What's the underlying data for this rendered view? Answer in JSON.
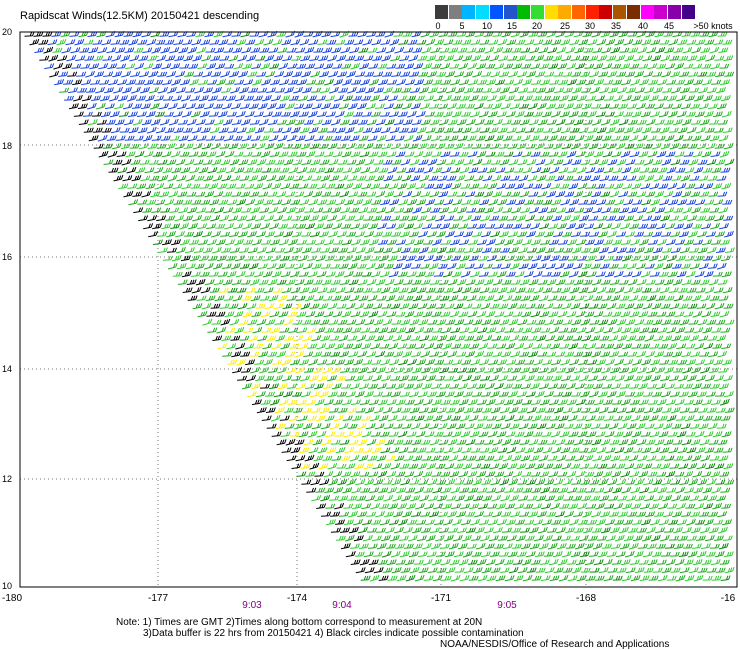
{
  "title": "Rapidscat Winds(12.5KM) 20150421 descending",
  "colorbar": {
    "colors": [
      "#3c3c3c",
      "#7f7f7f",
      "#00b4ff",
      "#00ddff",
      "#0055ff",
      "#2255cc",
      "#00bb00",
      "#33dd33",
      "#ffdd00",
      "#ffaa00",
      "#ff6600",
      "#ff2200",
      "#cc0000",
      "#aa5500",
      "#7a2e00",
      "#ff00ff",
      "#cc00cc",
      "#8800aa",
      "#440088"
    ],
    "labels": [
      "0",
      "5",
      "10",
      "15",
      "20",
      "25",
      "30",
      "35",
      "40",
      "45",
      ">50 knots"
    ]
  },
  "map": {
    "y_ticks": [
      "20",
      "18",
      "16",
      "14",
      "12",
      "10"
    ],
    "x_ticks": [
      "-180",
      "-177",
      "-174",
      "-171",
      "-168",
      "-16"
    ],
    "time_ticks": [
      "9:03",
      "9:04",
      "9:05"
    ]
  },
  "notes": {
    "line1": "Note: 1) Times are GMT 2)Times along bottom correspond to measurement at 20N",
    "line2": "3)Data buffer is 22 hrs from 20150421 4) Black circles indicate possible contamination",
    "credit": "NOAA/NESDIS/Office of Research and Applications"
  }
}
